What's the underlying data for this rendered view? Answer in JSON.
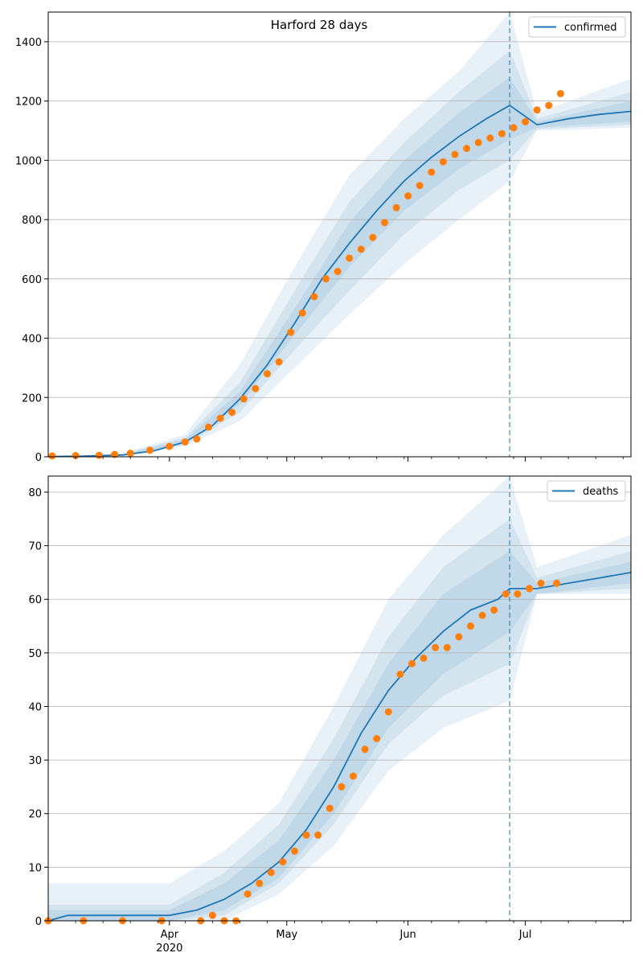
{
  "chart_data": [
    {
      "type": "line",
      "title": "Harford 28 days",
      "xlabel": "",
      "ylabel": "",
      "x_ticks": [
        "Apr\n2020",
        "May",
        "Jun",
        "Jul"
      ],
      "ylim": [
        0,
        1500
      ],
      "y_ticks": [
        0,
        200,
        400,
        600,
        800,
        1000,
        1200,
        1400
      ],
      "grid": "horizontal",
      "legend_position": "top-right",
      "forecast_start": "2020-06-27",
      "series": [
        {
          "name": "confirmed",
          "color": "#1f77b4",
          "dates": [
            "2020-03-02",
            "2020-03-10",
            "2020-03-20",
            "2020-03-28",
            "2020-04-05",
            "2020-04-12",
            "2020-04-19",
            "2020-04-26",
            "2020-05-03",
            "2020-05-10",
            "2020-05-17",
            "2020-05-24",
            "2020-05-31",
            "2020-06-07",
            "2020-06-14",
            "2020-06-21",
            "2020-06-27",
            "2020-07-04",
            "2020-07-12",
            "2020-07-20",
            "2020-07-28"
          ],
          "values": [
            1,
            2,
            6,
            20,
            50,
            105,
            195,
            310,
            450,
            600,
            720,
            830,
            930,
            1010,
            1080,
            1140,
            1185,
            1120,
            1140,
            1155,
            1165
          ]
        }
      ],
      "bands": [
        {
          "opacity": 0.1,
          "dates": [
            "2020-03-02",
            "2020-03-20",
            "2020-04-05",
            "2020-04-19",
            "2020-05-03",
            "2020-05-17",
            "2020-05-31",
            "2020-06-14",
            "2020-06-27",
            "2020-07-04",
            "2020-07-28"
          ],
          "lower": [
            0,
            3,
            35,
            120,
            300,
            480,
            650,
            800,
            930,
            1100,
            1110
          ],
          "upper": [
            3,
            12,
            75,
            310,
            640,
            950,
            1140,
            1300,
            1500,
            1160,
            1275
          ]
        },
        {
          "opacity": 0.1,
          "dates": [
            "2020-03-02",
            "2020-03-20",
            "2020-04-05",
            "2020-04-19",
            "2020-05-03",
            "2020-05-17",
            "2020-05-31",
            "2020-06-14",
            "2020-06-27",
            "2020-07-04",
            "2020-07-28"
          ],
          "lower": [
            0,
            4,
            40,
            150,
            360,
            560,
            750,
            900,
            1000,
            1105,
            1120
          ],
          "upper": [
            2,
            9,
            65,
            250,
            560,
            860,
            1060,
            1230,
            1370,
            1140,
            1230
          ]
        },
        {
          "opacity": 0.1,
          "dates": [
            "2020-03-02",
            "2020-03-20",
            "2020-04-05",
            "2020-04-19",
            "2020-05-03",
            "2020-05-17",
            "2020-05-31",
            "2020-06-14",
            "2020-06-27",
            "2020-07-04",
            "2020-07-28"
          ],
          "lower": [
            0,
            5,
            45,
            175,
            410,
            640,
            830,
            970,
            1070,
            1110,
            1130
          ],
          "upper": [
            2,
            8,
            58,
            220,
            500,
            790,
            1000,
            1160,
            1280,
            1130,
            1200
          ]
        }
      ],
      "observed": {
        "color": "#ff7f0e",
        "dates": [
          "2020-03-02",
          "2020-03-08",
          "2020-03-14",
          "2020-03-18",
          "2020-03-22",
          "2020-03-27",
          "2020-04-01",
          "2020-04-05",
          "2020-04-08",
          "2020-04-11",
          "2020-04-14",
          "2020-04-17",
          "2020-04-20",
          "2020-04-23",
          "2020-04-26",
          "2020-04-29",
          "2020-05-02",
          "2020-05-05",
          "2020-05-08",
          "2020-05-11",
          "2020-05-14",
          "2020-05-17",
          "2020-05-20",
          "2020-05-23",
          "2020-05-26",
          "2020-05-29",
          "2020-06-01",
          "2020-06-04",
          "2020-06-07",
          "2020-06-10",
          "2020-06-13",
          "2020-06-16",
          "2020-06-19",
          "2020-06-22",
          "2020-06-25",
          "2020-06-28",
          "2020-07-01",
          "2020-07-04",
          "2020-07-07",
          "2020-07-10"
        ],
        "values": [
          3,
          4,
          5,
          8,
          12,
          22,
          35,
          50,
          60,
          100,
          130,
          150,
          195,
          230,
          280,
          320,
          420,
          485,
          540,
          600,
          625,
          670,
          700,
          740,
          790,
          840,
          880,
          915,
          960,
          995,
          1020,
          1040,
          1060,
          1075,
          1090,
          1110,
          1130,
          1170,
          1185,
          1225
        ]
      }
    },
    {
      "type": "line",
      "title": "",
      "xlabel": "",
      "ylabel": "",
      "x_ticks": [
        "Apr\n2020",
        "May",
        "Jun",
        "Jul"
      ],
      "ylim": [
        0,
        83
      ],
      "y_ticks": [
        0,
        10,
        20,
        30,
        40,
        50,
        60,
        70,
        80
      ],
      "grid": "horizontal",
      "legend_position": "top-right",
      "forecast_start": "2020-06-27",
      "series": [
        {
          "name": "deaths",
          "color": "#1f77b4",
          "dates": [
            "2020-03-01",
            "2020-03-06",
            "2020-04-01",
            "2020-04-08",
            "2020-04-15",
            "2020-04-22",
            "2020-04-29",
            "2020-05-06",
            "2020-05-13",
            "2020-05-20",
            "2020-05-27",
            "2020-06-03",
            "2020-06-10",
            "2020-06-17",
            "2020-06-24",
            "2020-06-27",
            "2020-07-04",
            "2020-07-12",
            "2020-07-20",
            "2020-07-28"
          ],
          "values": [
            0,
            1,
            1,
            2,
            4,
            7,
            11,
            17,
            25,
            35,
            43,
            49,
            54,
            58,
            60,
            62,
            62,
            63,
            64,
            65
          ]
        }
      ],
      "bands": [
        {
          "opacity": 0.1,
          "dates": [
            "2020-03-01",
            "2020-04-01",
            "2020-04-15",
            "2020-04-29",
            "2020-05-13",
            "2020-05-27",
            "2020-06-10",
            "2020-06-27",
            "2020-07-04",
            "2020-07-28"
          ],
          "lower": [
            0,
            0,
            0,
            5,
            14,
            28,
            36,
            41,
            61,
            61
          ],
          "upper": [
            7,
            7,
            13,
            22,
            40,
            60,
            72,
            83,
            66,
            72
          ]
        },
        {
          "opacity": 0.1,
          "dates": [
            "2020-03-01",
            "2020-04-01",
            "2020-04-15",
            "2020-04-29",
            "2020-05-13",
            "2020-05-27",
            "2020-06-10",
            "2020-06-27",
            "2020-07-04",
            "2020-07-28"
          ],
          "lower": [
            0,
            0,
            1,
            7,
            18,
            33,
            42,
            48,
            61,
            62
          ],
          "upper": [
            3,
            3,
            9,
            18,
            34,
            53,
            66,
            75,
            64,
            69
          ]
        },
        {
          "opacity": 0.1,
          "dates": [
            "2020-03-01",
            "2020-04-01",
            "2020-04-15",
            "2020-04-29",
            "2020-05-13",
            "2020-05-27",
            "2020-06-10",
            "2020-06-27",
            "2020-07-04",
            "2020-07-28"
          ],
          "lower": [
            0,
            0,
            2,
            8,
            20,
            36,
            46,
            54,
            61,
            63
          ],
          "upper": [
            2,
            2,
            7,
            15,
            30,
            48,
            61,
            69,
            63,
            67
          ]
        }
      ],
      "observed": {
        "color": "#ff7f0e",
        "dates": [
          "2020-03-01",
          "2020-03-10",
          "2020-03-20",
          "2020-03-30",
          "2020-04-09",
          "2020-04-12",
          "2020-04-15",
          "2020-04-18",
          "2020-04-21",
          "2020-04-24",
          "2020-04-27",
          "2020-04-30",
          "2020-05-03",
          "2020-05-06",
          "2020-05-09",
          "2020-05-12",
          "2020-05-15",
          "2020-05-18",
          "2020-05-21",
          "2020-05-24",
          "2020-05-27",
          "2020-05-30",
          "2020-06-02",
          "2020-06-05",
          "2020-06-08",
          "2020-06-11",
          "2020-06-14",
          "2020-06-17",
          "2020-06-20",
          "2020-06-23",
          "2020-06-26",
          "2020-06-29",
          "2020-07-02",
          "2020-07-05",
          "2020-07-09"
        ],
        "values": [
          0,
          0,
          0,
          0,
          0,
          1,
          0,
          0,
          5,
          7,
          9,
          11,
          13,
          16,
          16,
          21,
          25,
          27,
          32,
          34,
          39,
          46,
          48,
          49,
          51,
          51,
          53,
          55,
          57,
          58,
          61,
          61,
          62,
          63,
          63
        ]
      }
    }
  ]
}
